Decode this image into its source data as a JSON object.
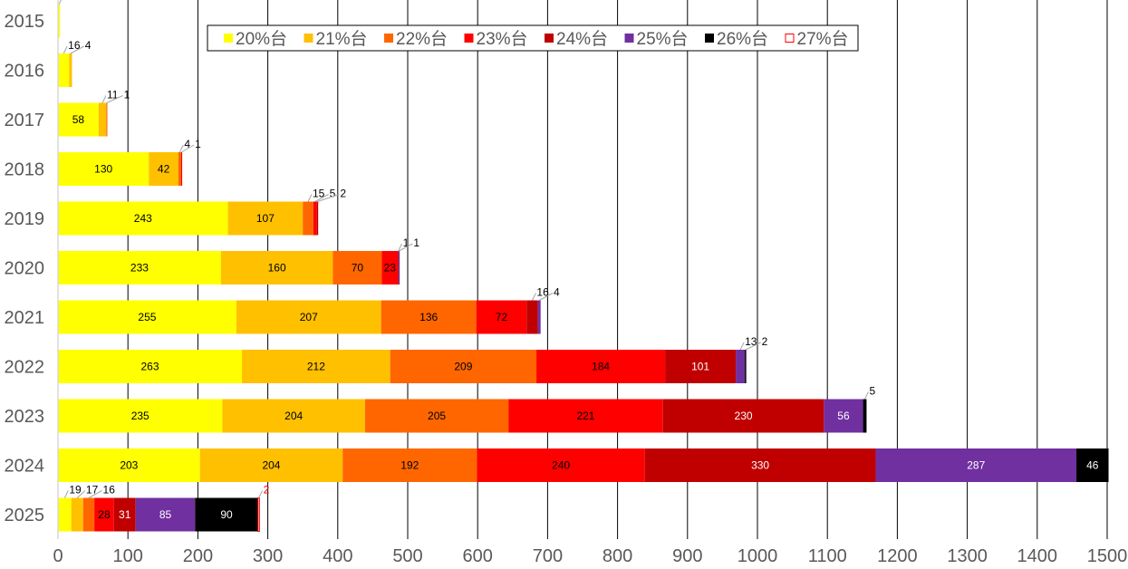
{
  "chart_data": {
    "type": "bar",
    "orientation": "horizontal",
    "stacked": true,
    "title": "",
    "xlabel": "",
    "ylabel": "",
    "xlim": [
      0,
      1500
    ],
    "xticks": [
      0,
      100,
      200,
      300,
      400,
      500,
      600,
      700,
      800,
      900,
      1000,
      1100,
      1200,
      1300,
      1400,
      1500
    ],
    "grid": true,
    "legend_position": "top",
    "categories": [
      "2015",
      "2016",
      "2017",
      "2018",
      "2019",
      "2020",
      "2021",
      "2022",
      "2023",
      "2024",
      "2025"
    ],
    "series": [
      {
        "name": "20%台",
        "color": "#FFFF00",
        "label_color": "#000000",
        "values": [
          3,
          16,
          58,
          130,
          243,
          233,
          255,
          263,
          235,
          203,
          19
        ]
      },
      {
        "name": "21%台",
        "color": "#FFC000",
        "label_color": "#000000",
        "values": [
          0,
          4,
          11,
          42,
          107,
          160,
          207,
          212,
          204,
          204,
          17
        ]
      },
      {
        "name": "22%台",
        "color": "#FF6600",
        "label_color": "#000000",
        "values": [
          0,
          0,
          1,
          4,
          15,
          70,
          136,
          209,
          205,
          192,
          16
        ]
      },
      {
        "name": "23%台",
        "color": "#FF0000",
        "label_color": "#000000",
        "values": [
          0,
          0,
          0,
          1,
          5,
          23,
          72,
          184,
          221,
          240,
          28
        ]
      },
      {
        "name": "24%台",
        "color": "#C00000",
        "label_color": "#FFFFFF",
        "values": [
          0,
          0,
          0,
          0,
          2,
          1,
          16,
          101,
          230,
          330,
          31
        ]
      },
      {
        "name": "25%台",
        "color": "#7030A0",
        "label_color": "#FFFFFF",
        "values": [
          0,
          0,
          0,
          0,
          0,
          1,
          4,
          13,
          56,
          287,
          85
        ]
      },
      {
        "name": "26%台",
        "color": "#000000",
        "label_color": "#FFFFFF",
        "values": [
          0,
          0,
          0,
          0,
          0,
          0,
          0,
          2,
          5,
          46,
          90
        ]
      },
      {
        "name": "27%台",
        "color": "#FF0000",
        "label_color": "#FF0000",
        "outline": true,
        "values": [
          0,
          0,
          0,
          0,
          0,
          0,
          0,
          0,
          0,
          0,
          2
        ]
      }
    ]
  }
}
